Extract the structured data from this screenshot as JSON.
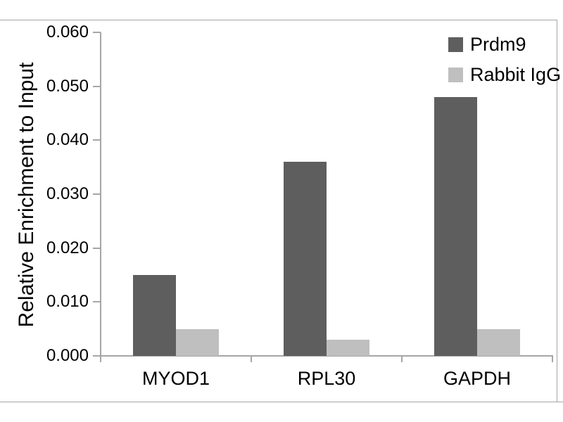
{
  "chart_data": {
    "type": "bar",
    "title": "",
    "ylabel": "Relative Enrichment to Input",
    "xlabel": "",
    "categories": [
      "MYOD1",
      "RPL30",
      "GAPDH"
    ],
    "series": [
      {
        "name": "Prdm9",
        "color": "#5e5e5e",
        "values": [
          0.015,
          0.036,
          0.048
        ]
      },
      {
        "name": "Rabbit IgG",
        "color": "#bfbfbf",
        "values": [
          0.005,
          0.003,
          0.005
        ]
      }
    ],
    "ylim": [
      0,
      0.06
    ],
    "ytick_step": 0.01,
    "ytick_labels": [
      "0.000",
      "0.010",
      "0.020",
      "0.030",
      "0.040",
      "0.050",
      "0.060"
    ],
    "grid": false,
    "legend_position": "top-right"
  },
  "colors": {
    "axis": "#a6a6a6",
    "text": "#000000",
    "background": "#ffffff"
  }
}
